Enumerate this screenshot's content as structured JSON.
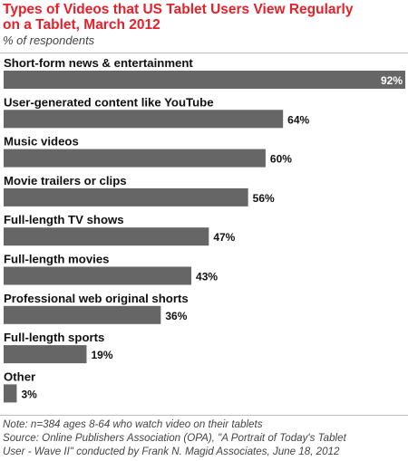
{
  "title_line1": "Types of Videos that US Tablet Users View Regularly",
  "title_line2": "on a Tablet, March 2012",
  "subtitle": "% of respondents",
  "chart_data": {
    "type": "bar",
    "orientation": "horizontal",
    "categories": [
      "Short-form news & entertainment",
      "User-generated content like YouTube",
      "Music videos",
      "Movie trailers or clips",
      "Full-length TV shows",
      "Full-length movies",
      "Professional web original shorts",
      "Full-length sports",
      "Other"
    ],
    "values": [
      92,
      64,
      60,
      56,
      47,
      43,
      36,
      19,
      3
    ],
    "value_labels": [
      "92%",
      "64%",
      "60%",
      "56%",
      "47%",
      "43%",
      "36%",
      "19%",
      "3%"
    ],
    "xlim": [
      0,
      92
    ],
    "bar_color": "#666666",
    "grid": false
  },
  "note_line1": "Note: n=384 ages 8-64 who watch video on their tablets",
  "note_line2": "Source: Online Publishers Association (OPA), \"A Portrait of Today's Tablet",
  "note_line3": "User - Wave II\" conducted by Frank N. Magid Associates, June 18, 2012",
  "colors": {
    "title": "#e8202a",
    "bar": "#666666",
    "text": "#111111",
    "notes": "#444444"
  }
}
